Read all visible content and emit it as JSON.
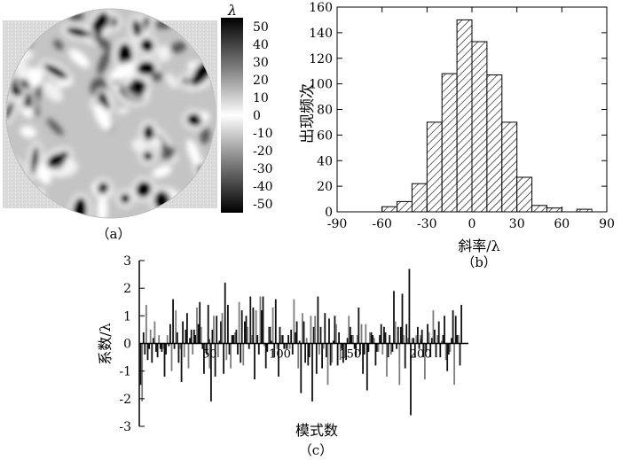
{
  "panels": {
    "a": {
      "caption": "（a）"
    },
    "b": {
      "caption": "（b）"
    },
    "c": {
      "caption": "（c）"
    }
  },
  "colorbar": {
    "unit": "λ",
    "ticks": [
      50,
      40,
      30,
      20,
      10,
      0,
      -10,
      -20,
      -30,
      -40,
      -50
    ],
    "range": [
      -55,
      55
    ],
    "colors": {
      "high": "#000000",
      "mid": "#ffffff",
      "low": "#000000"
    }
  },
  "chart_data": [
    {
      "type": "heatmap",
      "panel": "a",
      "shape": "circular aperture",
      "value_range": [
        -55,
        55
      ],
      "unit": "λ",
      "background": "#d6d6d6"
    },
    {
      "type": "bar",
      "panel": "b",
      "xlabel": "斜率/λ",
      "ylabel": "出现频次",
      "xlim": [
        -90,
        90
      ],
      "ylim": [
        0,
        160
      ],
      "xticks": [
        -90,
        -60,
        -30,
        0,
        30,
        60,
        90
      ],
      "yticks": [
        0,
        20,
        40,
        60,
        80,
        100,
        120,
        140,
        160
      ],
      "bin_width": 10,
      "bins": [
        {
          "x": -65,
          "value": 0
        },
        {
          "x": -55,
          "value": 4
        },
        {
          "x": -45,
          "value": 8
        },
        {
          "x": -35,
          "value": 22
        },
        {
          "x": -25,
          "value": 70
        },
        {
          "x": -15,
          "value": 108
        },
        {
          "x": -5,
          "value": 150
        },
        {
          "x": 5,
          "value": 133
        },
        {
          "x": 15,
          "value": 107
        },
        {
          "x": 25,
          "value": 70
        },
        {
          "x": 35,
          "value": 27
        },
        {
          "x": 45,
          "value": 5
        },
        {
          "x": 55,
          "value": 3
        },
        {
          "x": 75,
          "value": 2
        }
      ],
      "grid": false,
      "fill": "diagonal hatch"
    },
    {
      "type": "bar",
      "panel": "c",
      "xlabel": "模式数",
      "ylabel": "系数/λ",
      "xlim": [
        0,
        234
      ],
      "ylim": [
        -3,
        3
      ],
      "xticks": [
        50,
        100,
        150,
        200
      ],
      "yticks": [
        -3,
        -2,
        -1,
        0,
        1,
        2,
        3
      ],
      "values": [
        -1.5,
        -2.1,
        0.4,
        -0.4,
        1.4,
        -0.6,
        -0.2,
        0.5,
        -0.7,
        0.2,
        0.8,
        -0.3,
        -0.5,
        0.3,
        -0.2,
        -0.3,
        -0.2,
        -1.2,
        -0.4,
        0.3,
        -0.1,
        0.7,
        -1.0,
        1.6,
        -0.2,
        1.2,
        0.4,
        -0.7,
        -0.2,
        -1.4,
        0.8,
        -0.5,
        0.5,
        1.1,
        -0.9,
        0.2,
        0.5,
        -0.4,
        0.5,
        0.3,
        1.3,
        0.7,
        1.5,
        0.6,
        -0.2,
        -1.1,
        -0.3,
        -0.4,
        1.4,
        -0.9,
        -2.1,
        0.5,
        1.0,
        -1.2,
        1.0,
        -0.5,
        0.1,
        0.8,
        1.1,
        -1.1,
        2.2,
        -0.6,
        1.4,
        -0.4,
        -0.9,
        0.3,
        0.3,
        0.4,
        0.5,
        -0.4,
        1.5,
        -0.7,
        1.2,
        -0.8,
        0.8,
        1.0,
        0.6,
        -0.2,
        1.7,
        0.3,
        1.3,
        -1.3,
        1.2,
        0.3,
        -0.4,
        1.7,
        1.2,
        1.7,
        -0.1,
        -0.9,
        -0.3,
        0.6,
        0.6,
        0.1,
        1.3,
        -0.5,
        1.6,
        -0.2,
        -1.2,
        0.6,
        0.3,
        0.3,
        -0.2,
        -0.2,
        -0.2,
        0.3,
        -0.2,
        0.5,
        -0.4,
        1.6,
        0.4,
        0.8,
        -0.9,
        0.1,
        -1.8,
        1.1,
        0.8,
        -0.7,
        0.2,
        -0.8,
        -0.5,
        1.0,
        -2.1,
        0.6,
        1.0,
        -1.1,
        1.7,
        -0.4,
        0.6,
        -0.9,
        -0.2,
        1.1,
        -0.5,
        -1.5,
        0.9,
        -0.8,
        -0.7,
        0.1,
        1.0,
        0.7,
        -0.8,
        0.4,
        -0.6,
        -0.2,
        -0.7,
        -0.5,
        -0.6,
        0.2,
        1.0,
        0.6,
        0.3,
        0.3,
        -0.2,
        -0.5,
        0.3,
        1.3,
        -0.4,
        0.7,
        -1.1,
        -0.4,
        0.7,
        -1.7,
        -0.3,
        0.4,
        0.4,
        0.3,
        0.2,
        -0.8,
        -0.3,
        -0.3,
        0.3,
        0.7,
        -0.4,
        0.6,
        0.4,
        -1.2,
        -0.5,
        0.3,
        -0.4,
        -0.3,
        1.9,
        0.8,
        -0.2,
        0.6,
        -1.5,
        0.6,
        1.8,
        0.3,
        -0.9,
        0.7,
        0.2,
        2.7,
        -2.6,
        0.2,
        0.2,
        -0.5,
        0.3,
        0.6,
        -0.2,
        0.3,
        0.5,
        -0.5,
        -1.3,
        -0.3,
        0.7,
        0.4,
        -0.5,
        0.2,
        1.2,
        0.5,
        -0.5,
        0.3,
        0.8,
        -0.5,
        0.1,
        0.3,
        1.0,
        -0.6,
        -1.0,
        -0.4,
        -0.3,
        0.2,
        1.2,
        -1.5,
        1.0,
        0.3,
        0.3,
        -0.8,
        1.4
      ]
    }
  ]
}
